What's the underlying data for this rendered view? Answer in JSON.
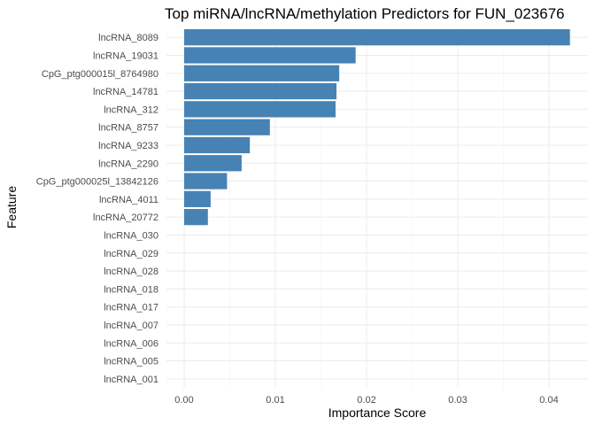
{
  "chart_data": {
    "type": "bar",
    "orientation": "horizontal",
    "title": "Top miRNA/lncRNA/methylation Predictors for FUN_023676",
    "xlabel": "Importance Score",
    "ylabel": "Feature",
    "xlim": [
      0,
      0.043
    ],
    "x_ticks": [
      "0.00",
      "0.01",
      "0.02",
      "0.03",
      "0.04"
    ],
    "x_tick_values": [
      0,
      0.01,
      0.02,
      0.03,
      0.04
    ],
    "grid": true,
    "bar_color": "#4682b4",
    "categories": [
      "lncRNA_8089",
      "lncRNA_19031",
      "CpG_ptg000015l_8764980",
      "lncRNA_14781",
      "lncRNA_312",
      "lncRNA_8757",
      "lncRNA_9233",
      "lncRNA_2290",
      "CpG_ptg000025l_13842126",
      "lncRNA_4011",
      "lncRNA_20772",
      "lncRNA_030",
      "lncRNA_029",
      "lncRNA_028",
      "lncRNA_018",
      "lncRNA_017",
      "lncRNA_007",
      "lncRNA_006",
      "lncRNA_005",
      "lncRNA_001"
    ],
    "values": [
      0.0423,
      0.0188,
      0.017,
      0.0167,
      0.0166,
      0.0094,
      0.0072,
      0.0063,
      0.0047,
      0.0029,
      0.0026,
      0,
      0,
      0,
      0,
      0,
      0,
      0,
      0,
      0
    ]
  }
}
